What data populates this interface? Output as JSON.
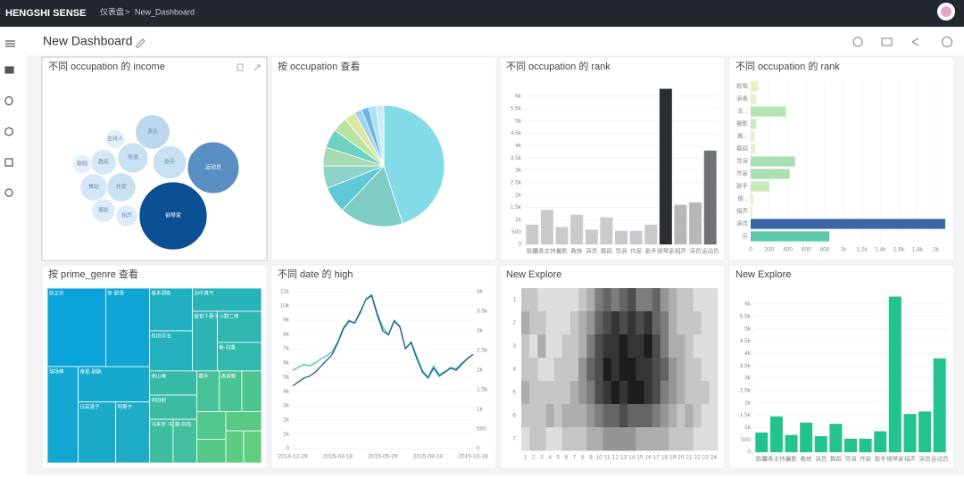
{
  "header": {
    "brand": "HENGSHI SENSE",
    "breadcrumb": [
      "仪表盘",
      ">",
      "New_Dashboard"
    ]
  },
  "dashboard_title": "New Dashboard",
  "chart_data": [
    {
      "type": "bubble",
      "title": "不同 occupation 的 income",
      "categories": [
        "钢琴家",
        "运动员",
        "演员",
        "歌手",
        "导演",
        "作家",
        "舞蹈",
        "教练",
        "摄影",
        "相声",
        "主持人",
        "歌唱"
      ],
      "values": [
        100,
        58,
        26,
        24,
        20,
        18,
        16,
        14,
        12,
        10,
        8,
        8
      ],
      "colors": [
        "#0b4f94",
        "#5b8fc4",
        "#bcd8ee",
        "#c7e0f2",
        "#c7e0f2",
        "#c7e0f2",
        "#d3e7f5",
        "#d3e7f5",
        "#dcebf7",
        "#dcebf7",
        "#e3effa",
        "#e3effa"
      ]
    },
    {
      "type": "pie",
      "title": "按 occupation 查看",
      "values": [
        45,
        17,
        7,
        6,
        5,
        5,
        4,
        3,
        2,
        2,
        2,
        2
      ],
      "colors": [
        "#84dbe8",
        "#7ecdc4",
        "#5cc8d8",
        "#8dd3c7",
        "#a6dab3",
        "#6dd0c1",
        "#b9e3a3",
        "#dbe9a3",
        "#a0d4f0",
        "#67b9e8",
        "#aee2f0",
        "#c8edf5"
      ]
    },
    {
      "type": "bar",
      "title": "不同 occupation 的 rank",
      "categories": [
        "歌唱",
        "演奏主持人",
        "摄影",
        "教练",
        "演员",
        "舞蹈",
        "导演",
        "作家",
        "歌手",
        "钢琴家",
        "相声",
        "演员",
        "运动员"
      ],
      "values": [
        800,
        1400,
        700,
        1200,
        600,
        1100,
        550,
        550,
        800,
        6300,
        1600,
        1700,
        3800
      ],
      "colors": [
        "#c9cacd",
        "#c9cacd",
        "#c9cacd",
        "#c9cacd",
        "#c9cacd",
        "#c9cacd",
        "#c9cacd",
        "#c9cacd",
        "#c9cacd",
        "#2a2e33",
        "#b5b7ba",
        "#b5b7ba",
        "#6f7276"
      ],
      "ylim": [
        0,
        6500
      ],
      "yticks": [
        0,
        500,
        {
          "value": 1000,
          "label": "1k"
        },
        {
          "value": 1500,
          "label": "1.5k"
        },
        {
          "value": 2000,
          "label": "2k"
        },
        {
          "value": 2500,
          "label": "2.5k"
        },
        {
          "value": 3000,
          "label": "3k"
        },
        {
          "value": 3500,
          "label": "3.5k"
        },
        {
          "value": 4000,
          "label": "4k"
        },
        {
          "value": 4500,
          "label": "4.5k"
        },
        {
          "value": 5000,
          "label": "5k"
        },
        {
          "value": 5500,
          "label": "5.5k"
        },
        {
          "value": 6000,
          "label": "6k"
        }
      ]
    },
    {
      "type": "hbar",
      "title": "不同 occupation 的 rank",
      "categories": [
        "歌唱",
        "演奏",
        "主...",
        "摄影",
        "教...",
        "舞蹈",
        "导演",
        "作家",
        "歌手",
        "钢...",
        "相声",
        "演员",
        "乐"
      ],
      "values": [
        80,
        60,
        380,
        60,
        40,
        50,
        480,
        420,
        200,
        30,
        20,
        2100,
        850
      ],
      "colors": [
        "#e3f2bf",
        "#e3f2bf",
        "#b5e4b4",
        "#c9ebb8",
        "#e3f2bf",
        "#e3f2bf",
        "#a8e0b4",
        "#a8e0b4",
        "#c9ebb8",
        "#e3f2bf",
        "#e3f2bf",
        "#3c66a8",
        "#5cc9a7"
      ],
      "xlim": [
        0,
        2100
      ],
      "xticks": [
        0,
        200,
        400,
        600,
        800,
        {
          "value": 1000,
          "label": "1k"
        },
        {
          "value": 1200,
          "label": "1.2k"
        },
        {
          "value": 1400,
          "label": "1.4k"
        },
        {
          "value": 1600,
          "label": "1.6k"
        },
        {
          "value": 1800,
          "label": "1.8k"
        },
        {
          "value": 2000,
          "label": "2k"
        }
      ]
    },
    {
      "type": "treemap",
      "title": "按 prime_genre 查看",
      "categories": [
        "妖正宗",
        "新·剧场",
        "球场棒",
        "奇是·剧剧",
        "日高清子",
        "阿斯宁",
        "基本调查",
        "松田洋治",
        "田中真弓",
        "彼贺千惠子",
        "小野二郎",
        "新·村桑",
        "高山南",
        "冈田树",
        "马来亚·马冠雄",
        "藤·冈岛",
        "藤木",
        "高波智",
        null,
        null,
        null,
        null,
        null,
        null
      ],
      "values": [
        40,
        30,
        26,
        22,
        20,
        18,
        16,
        15,
        14,
        13,
        12,
        11,
        10,
        10,
        9,
        9,
        8,
        8,
        7,
        7,
        6,
        6,
        5,
        5
      ]
    },
    {
      "type": "line",
      "title": "不同 date 的 high",
      "categories": [
        "2014-12-29",
        null,
        null,
        null,
        null,
        null,
        null,
        null,
        "2015-03-18",
        null,
        null,
        null,
        null,
        null,
        null,
        null,
        "2015-05-29",
        null,
        null,
        null,
        null,
        null,
        null,
        null,
        "2015-08-10",
        null,
        null,
        null,
        null,
        null,
        null,
        null,
        "2015-10-28"
      ],
      "series": [
        {
          "color": "#3ccf9a",
          "values": [
            5500,
            5700,
            5900,
            5800,
            6000,
            6300,
            6500,
            6800,
            7500,
            8500,
            9000,
            8800,
            9500,
            10500,
            10800,
            9500,
            8500,
            8000,
            9000,
            8600,
            7000,
            7500,
            6500,
            5500,
            5000,
            5800,
            5200,
            5400,
            5700,
            5600,
            6000,
            6300,
            6600
          ]
        },
        {
          "color": "#2a5597",
          "axis": "y2",
          "values": [
            1600,
            1700,
            1800,
            1850,
            1950,
            2100,
            2250,
            2400,
            2700,
            3050,
            3250,
            3200,
            3500,
            3800,
            3900,
            3400,
            3000,
            2900,
            3250,
            3100,
            2550,
            2700,
            2300,
            1950,
            1800,
            2050,
            1850,
            1950,
            2050,
            2000,
            2150,
            2300,
            2400
          ]
        }
      ],
      "ylim": [
        0,
        11000
      ],
      "yticks": [
        0,
        {
          "value": 1000,
          "label": "1k"
        },
        {
          "value": 2000,
          "label": "2k"
        },
        {
          "value": 3000,
          "label": "3k"
        },
        {
          "value": 4000,
          "label": "4k"
        },
        {
          "value": 5000,
          "label": "5k"
        },
        {
          "value": 6000,
          "label": "6k"
        },
        {
          "value": 7000,
          "label": "7k"
        },
        {
          "value": 8000,
          "label": "8k"
        },
        {
          "value": 9000,
          "label": "9k"
        },
        {
          "value": 10000,
          "label": "10k"
        },
        {
          "value": 11000,
          "label": "11k"
        }
      ],
      "y2lim": [
        0,
        4000
      ],
      "y2ticks": [
        0,
        500,
        {
          "value": 1000,
          "label": "1k"
        },
        {
          "value": 1500,
          "label": "1.5k"
        },
        {
          "value": 2000,
          "label": "2k"
        },
        {
          "value": 2500,
          "label": "2.5k"
        },
        {
          "value": 3000,
          "label": "3k"
        },
        {
          "value": 3500,
          "label": "3.5k"
        },
        {
          "value": 4000,
          "label": "4k"
        }
      ]
    },
    {
      "type": "heatmap",
      "title": "New Explore",
      "x": [
        1,
        2,
        3,
        4,
        5,
        6,
        7,
        8,
        9,
        10,
        11,
        12,
        13,
        14,
        15,
        16,
        17,
        18,
        19,
        20,
        21,
        22,
        23,
        24
      ],
      "y": [
        1,
        2,
        3,
        4,
        5,
        6,
        7
      ],
      "values": [
        [
          2,
          2,
          1,
          1,
          1,
          1,
          1,
          2,
          3,
          5,
          6,
          5,
          6,
          7,
          5,
          5,
          6,
          4,
          3,
          2,
          2,
          1,
          1,
          1
        ],
        [
          3,
          2,
          2,
          1,
          1,
          1,
          2,
          3,
          4,
          6,
          7,
          8,
          7,
          8,
          7,
          8,
          6,
          5,
          3,
          2,
          2,
          2,
          1,
          1
        ],
        [
          2,
          1,
          3,
          1,
          1,
          2,
          2,
          3,
          5,
          7,
          8,
          8,
          9,
          8,
          8,
          9,
          7,
          5,
          3,
          3,
          2,
          1,
          1,
          1
        ],
        [
          2,
          2,
          1,
          1,
          2,
          2,
          2,
          4,
          6,
          7,
          9,
          8,
          9,
          9,
          8,
          8,
          7,
          6,
          4,
          3,
          2,
          2,
          1,
          1
        ],
        [
          3,
          2,
          2,
          2,
          2,
          2,
          3,
          4,
          5,
          7,
          8,
          9,
          8,
          9,
          9,
          8,
          7,
          5,
          4,
          3,
          2,
          2,
          2,
          1
        ],
        [
          2,
          2,
          2,
          3,
          2,
          3,
          3,
          3,
          4,
          5,
          6,
          6,
          7,
          6,
          6,
          6,
          5,
          4,
          3,
          2,
          3,
          2,
          1,
          1
        ],
        [
          1,
          2,
          2,
          1,
          1,
          2,
          2,
          2,
          3,
          3,
          4,
          4,
          4,
          4,
          3,
          3,
          3,
          3,
          2,
          2,
          2,
          1,
          1,
          1
        ]
      ]
    },
    {
      "type": "bar",
      "title": "New Explore",
      "categories": [
        "歌唱",
        "演奏主持人",
        "摄影",
        "教练",
        "演员",
        "舞蹈",
        "导演",
        "作家",
        "歌手",
        "钢琴家",
        "相声",
        "演员",
        "运动员"
      ],
      "values": [
        800,
        1450,
        700,
        1200,
        650,
        1150,
        550,
        550,
        850,
        6300,
        1550,
        1650,
        3800
      ],
      "color": "#22c38e",
      "ylim": [
        0,
        6500
      ],
      "yticks": [
        0,
        500,
        {
          "value": 1000,
          "label": "1k"
        },
        {
          "value": 1500,
          "label": "1.5k"
        },
        {
          "value": 2000,
          "label": "2k"
        },
        {
          "value": 2500,
          "label": "2.5k"
        },
        {
          "value": 3000,
          "label": "3k"
        },
        {
          "value": 3500,
          "label": "3.5k"
        },
        {
          "value": 4000,
          "label": "4k"
        },
        {
          "value": 4500,
          "label": "4.5k"
        },
        {
          "value": 5000,
          "label": "5k"
        },
        {
          "value": 5500,
          "label": "5.5k"
        },
        {
          "value": 6000,
          "label": "6k"
        }
      ]
    }
  ]
}
